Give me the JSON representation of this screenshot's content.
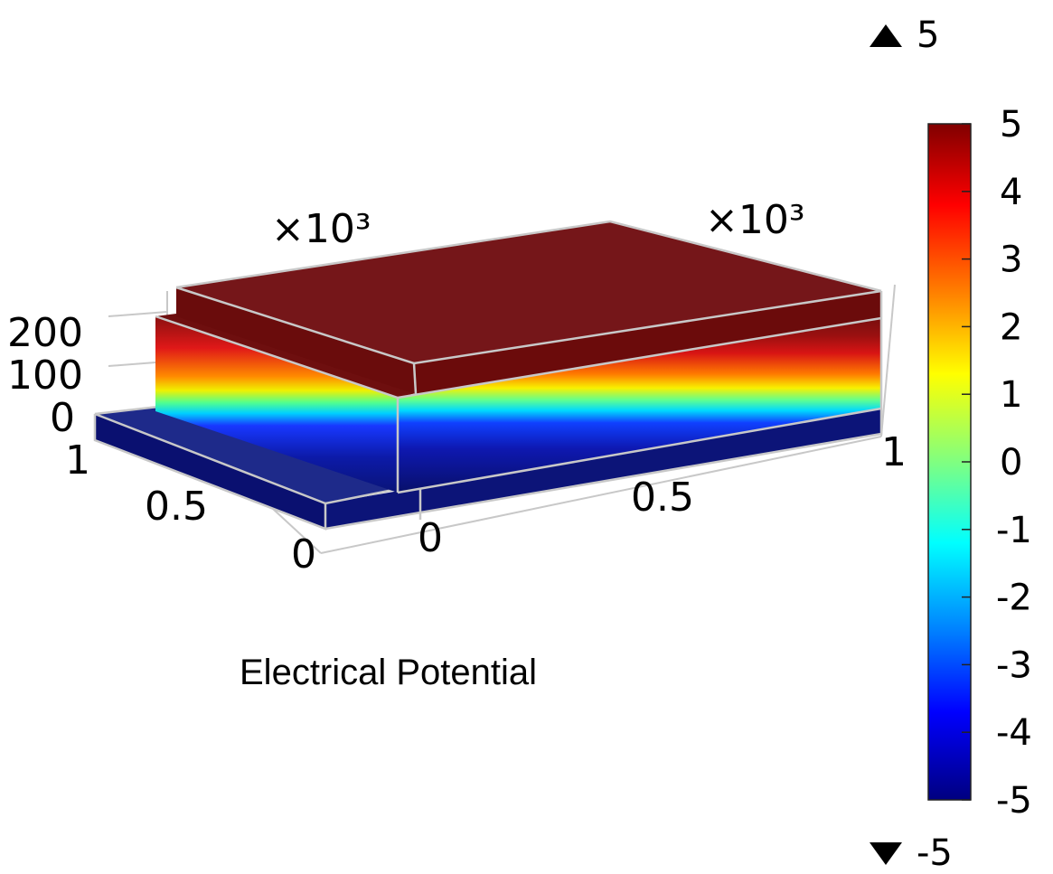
{
  "chart_data": {
    "type": "heatmap",
    "subtype": "3d-surface-slice",
    "title": "Electrical Potential",
    "colormap": "jet",
    "colorbar": {
      "min": -5,
      "max": 5,
      "ticks": [
        "5",
        "4",
        "3",
        "2",
        "1",
        "0",
        "-1",
        "-2",
        "-3",
        "-4",
        "-5"
      ],
      "max_marker": "5",
      "min_marker": "-5"
    },
    "axes": {
      "x": {
        "ticks": [
          "0",
          "0.5",
          "1"
        ],
        "multiplier": "×10³"
      },
      "y": {
        "ticks": [
          "0",
          "0.5",
          "1"
        ],
        "multiplier": "×10³"
      },
      "z": {
        "ticks": [
          "0",
          "100",
          "200"
        ]
      }
    },
    "layers": [
      {
        "name": "substrate",
        "value": -5
      },
      {
        "name": "lower-block",
        "value": -5
      },
      {
        "name": "gradient-band",
        "from": -5,
        "to": 5
      },
      {
        "name": "upper-block",
        "value": 5
      }
    ]
  }
}
